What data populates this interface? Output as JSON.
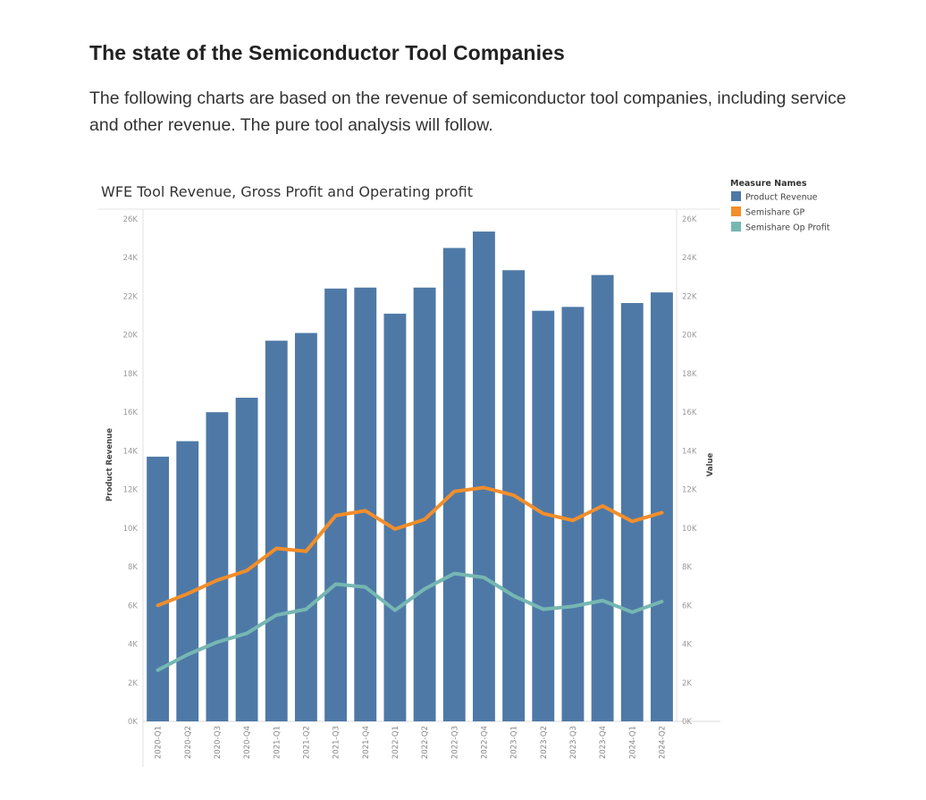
{
  "article": {
    "heading": "The state of the Semiconductor Tool Companies",
    "intro": "The following charts are based on the revenue of semiconductor tool companies, including service and other revenue. The pure tool analysis will follow."
  },
  "chart_data": {
    "type": "bar",
    "title": "WFE Tool Revenue, Gross Profit and Operating profit",
    "ylabel_left": "Product Revenue",
    "ylabel_right": "Value",
    "xlabel": "",
    "ylim": [
      0,
      26000
    ],
    "yticks": [
      "0K",
      "2K",
      "4K",
      "6K",
      "8K",
      "10K",
      "12K",
      "14K",
      "16K",
      "18K",
      "20K",
      "22K",
      "24K",
      "26K"
    ],
    "categories": [
      "2020-Q1",
      "2020-Q2",
      "2020-Q3",
      "2020-Q4",
      "2021-Q1",
      "2021-Q2",
      "2021-Q3",
      "2021-Q4",
      "2022-Q1",
      "2022-Q2",
      "2022-Q3",
      "2022-Q4",
      "2023-Q1",
      "2023-Q2",
      "2023-Q3",
      "2023-Q4",
      "2024-Q1",
      "2024-Q2"
    ],
    "legend": {
      "title": "Measure Names",
      "position": "top-right"
    },
    "series": [
      {
        "name": "Product Revenue",
        "kind": "bar",
        "color": "#4e79a7",
        "values": [
          13700,
          14500,
          16000,
          16750,
          19700,
          20100,
          22400,
          22450,
          21100,
          22450,
          24500,
          25350,
          23350,
          21250,
          21450,
          23100,
          21650,
          22200
        ]
      },
      {
        "name": "Semishare GP",
        "kind": "line",
        "color": "#f28e2b",
        "values": [
          6000,
          6600,
          7300,
          7800,
          8950,
          8800,
          10650,
          10900,
          9950,
          10450,
          11900,
          12100,
          11700,
          10750,
          10400,
          11150,
          10350,
          10800
        ]
      },
      {
        "name": "Semishare Op Profit",
        "kind": "line",
        "color": "#76b7b2",
        "values": [
          2650,
          3450,
          4100,
          4550,
          5500,
          5800,
          7100,
          6950,
          5750,
          6850,
          7650,
          7450,
          6500,
          5800,
          5950,
          6250,
          5650,
          6200
        ]
      }
    ]
  }
}
